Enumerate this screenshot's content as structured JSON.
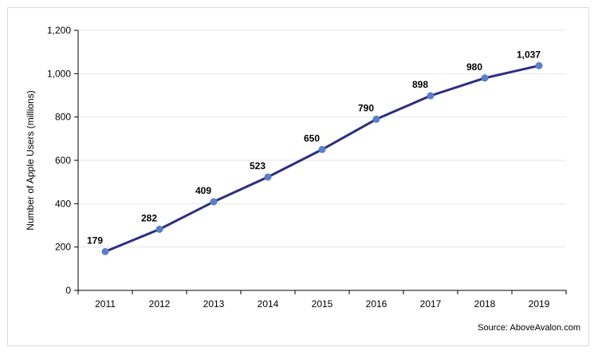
{
  "chart_data": {
    "type": "line",
    "title": "",
    "xlabel": "",
    "ylabel": "Number of Apple Users (millions)",
    "categories": [
      "2011",
      "2012",
      "2013",
      "2014",
      "2015",
      "2016",
      "2017",
      "2018",
      "2019"
    ],
    "series": [
      {
        "values": [
          179,
          282,
          409,
          523,
          650,
          790,
          898,
          980,
          1037
        ],
        "data_labels": [
          "179",
          "282",
          "409",
          "523",
          "650",
          "790",
          "898",
          "980",
          "1,037"
        ]
      }
    ],
    "ylim": [
      0,
      1200
    ],
    "yticks": [
      0,
      200,
      400,
      600,
      800,
      1000,
      1200
    ],
    "ytick_labels": [
      "0",
      "200",
      "400",
      "600",
      "800",
      "1,000",
      "1,200"
    ],
    "grid": true,
    "legend": "none",
    "colors": {
      "line": "#2e2e7e",
      "marker": "#5b7fc7",
      "grid": "#e6e6e6",
      "axis": "#000000"
    }
  },
  "source": "Source: AboveAvalon.com"
}
